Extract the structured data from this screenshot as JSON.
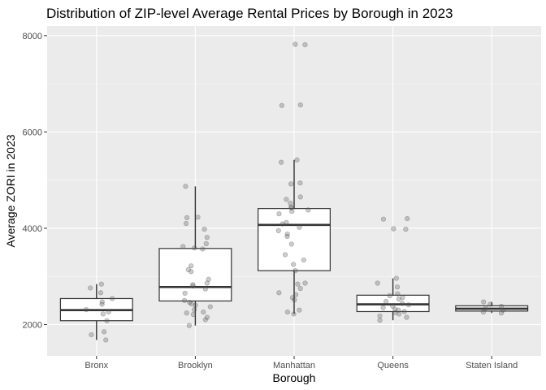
{
  "chart_data": {
    "type": "boxplot",
    "title": "Distribution of ZIP-level Average Rental Prices by Borough in 2023",
    "xlabel": "Borough",
    "ylabel": "Average ZORI in 2023",
    "ylim": [
      1350,
      8200
    ],
    "yticks": [
      2000,
      4000,
      6000,
      8000
    ],
    "categories": [
      "Bronx",
      "Brooklyn",
      "Manhattan",
      "Queens",
      "Staten Island"
    ],
    "grid": true,
    "colors": {
      "panel": "#ebebeb",
      "grid_major": "#ffffff",
      "box_fill": "#ffffff",
      "box_line": "#333333",
      "point": "#555555"
    },
    "boxes": [
      {
        "category": "Bronx",
        "whisker_low": 1680,
        "q1": 2080,
        "median": 2300,
        "q3": 2540,
        "whisker_high": 2840
      },
      {
        "category": "Brooklyn",
        "whisker_low": 1980,
        "q1": 2490,
        "median": 2780,
        "q3": 3580,
        "whisker_high": 4870
      },
      {
        "category": "Manhattan",
        "whisker_low": 2220,
        "q1": 3120,
        "median": 4070,
        "q3": 4410,
        "whisker_high": 5420
      },
      {
        "category": "Queens",
        "whisker_low": 2090,
        "q1": 2270,
        "median": 2420,
        "q3": 2610,
        "whisker_high": 2960
      },
      {
        "category": "Staten Island",
        "whisker_low": 2240,
        "q1": 2280,
        "median": 2330,
        "q3": 2390,
        "whisker_high": 2470
      }
    ],
    "points": [
      {
        "category": "Bronx",
        "values": [
          2840,
          2760,
          2660,
          2540,
          2470,
          2420,
          2310,
          2260,
          2220,
          2080,
          1850,
          1790,
          1680
        ]
      },
      {
        "category": "Brooklyn",
        "values": [
          4870,
          4230,
          4220,
          4100,
          3980,
          3810,
          3680,
          3620,
          3590,
          3570,
          3220,
          3140,
          3100,
          2940,
          2860,
          2830,
          2800,
          2740,
          2650,
          2500,
          2460,
          2430,
          2400,
          2370,
          2310,
          2260,
          2240,
          2210,
          2150,
          2100,
          1980
        ]
      },
      {
        "category": "Manhattan",
        "values": [
          7820,
          7810,
          6560,
          6550,
          5420,
          5370,
          4940,
          4920,
          4650,
          4600,
          4520,
          4440,
          4420,
          4380,
          4350,
          4300,
          4120,
          4090,
          4020,
          3950,
          3880,
          3830,
          3670,
          3450,
          3340,
          3250,
          3120,
          2860,
          2840,
          2750,
          2660,
          2620,
          2560,
          2510,
          2300,
          2260,
          2220
        ]
      },
      {
        "category": "Queens",
        "values": [
          4200,
          4190,
          3990,
          3980,
          2960,
          2860,
          2780,
          2640,
          2600,
          2560,
          2530,
          2480,
          2440,
          2410,
          2380,
          2350,
          2320,
          2300,
          2270,
          2250,
          2220,
          2180,
          2150,
          2090
        ]
      },
      {
        "category": "Staten Island",
        "values": [
          2470,
          2420,
          2380,
          2340,
          2300,
          2260,
          2240
        ]
      }
    ]
  }
}
